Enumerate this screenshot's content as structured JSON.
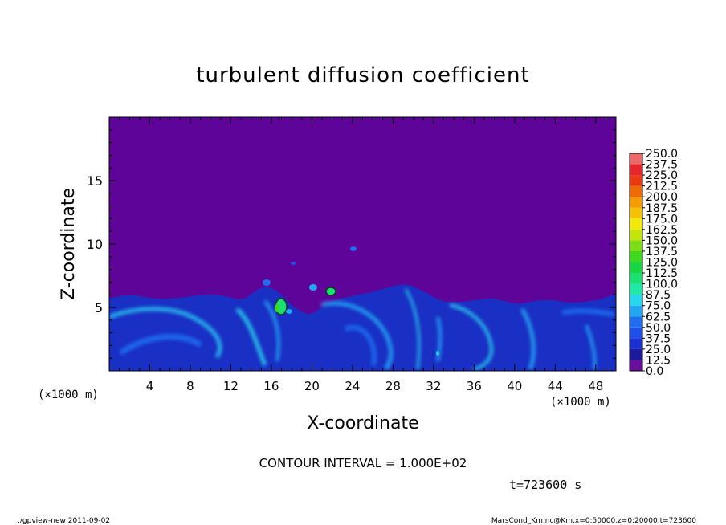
{
  "chart_data": {
    "type": "heatmap",
    "title": "turbulent diffusion coefficient",
    "xlabel": "X-coordinate",
    "ylabel": "Z-coordinate",
    "x_unit": "(×1000 m)",
    "y_unit": "(×1000 m)",
    "xlim": [
      0,
      50
    ],
    "ylim": [
      0,
      20
    ],
    "x_ticks": [
      "4",
      "8",
      "12",
      "16",
      "20",
      "24",
      "28",
      "32",
      "36",
      "40",
      "44",
      "48"
    ],
    "y_ticks": [
      "5",
      "10",
      "15"
    ],
    "colorbar": {
      "levels": [
        "0.0",
        "12.5",
        "25.0",
        "37.5",
        "50.0",
        "62.5",
        "75.0",
        "87.5",
        "100.0",
        "112.5",
        "125.0",
        "137.5",
        "150.0",
        "162.5",
        "175.0",
        "187.5",
        "200.0",
        "212.5",
        "225.0",
        "237.5",
        "250.0"
      ],
      "colors": [
        "#6a0da0",
        "#1c1b9e",
        "#1a2fcf",
        "#1e4fe8",
        "#1f6ef2",
        "#21a8f5",
        "#26d6ee",
        "#1fe8a8",
        "#19e070",
        "#18d641",
        "#3cd91c",
        "#7edc16",
        "#c4e40c",
        "#f2ea08",
        "#f5c206",
        "#f69a05",
        "#f06a08",
        "#ea3a12",
        "#e6262a",
        "#ee6a6a"
      ],
      "background_color": "#5f0499"
    },
    "contour_interval": "CONTOUR INTERVAL = 1.000E+02",
    "time": "t=723600 s"
  },
  "footer": {
    "left": "./gpview-new  2011-09-02",
    "right": "MarsCond_Km.nc@Km,x=0:50000,z=0:20000,t=723600"
  }
}
